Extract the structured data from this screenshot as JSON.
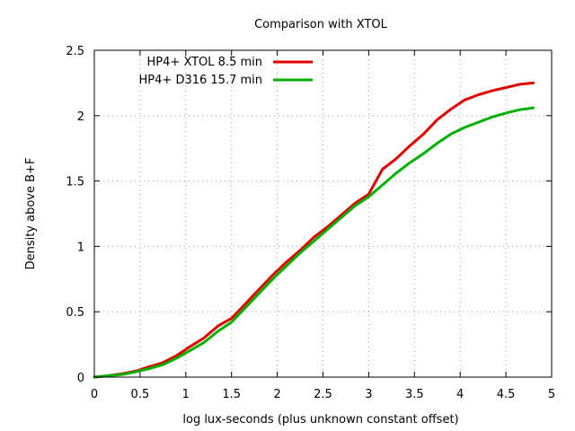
{
  "chart_data": {
    "type": "line",
    "title": "Comparison with XTOL",
    "xlabel": "log lux-seconds (plus unknown constant offset)",
    "ylabel": "Density above B+F",
    "xlim": [
      0,
      5
    ],
    "ylim": [
      0,
      2.5
    ],
    "x_ticks": [
      0,
      0.5,
      1,
      1.5,
      2,
      2.5,
      3,
      3.5,
      4,
      4.5,
      5
    ],
    "x_tick_labels": [
      "0",
      "0.5",
      "1",
      "1.5",
      "2",
      "2.5",
      "3",
      "3.5",
      "4",
      "4.5",
      "5"
    ],
    "y_ticks": [
      0,
      0.5,
      1,
      1.5,
      2,
      2.5
    ],
    "y_tick_labels": [
      "0",
      "0.5",
      "1",
      "1.5",
      "2",
      "2.5"
    ],
    "grid": true,
    "legend": "top-left",
    "series": [
      {
        "name": "HP4+ XTOL 8.5 min",
        "color": "#e00000",
        "x": [
          0,
          0.15,
          0.3,
          0.45,
          0.6,
          0.75,
          0.9,
          1.05,
          1.2,
          1.35,
          1.5,
          1.65,
          1.8,
          1.95,
          2.1,
          2.25,
          2.4,
          2.55,
          2.7,
          2.85,
          3.0,
          3.15,
          3.3,
          3.45,
          3.6,
          3.75,
          3.9,
          4.05,
          4.2,
          4.35,
          4.5,
          4.65,
          4.8
        ],
        "y": [
          0,
          0.01,
          0.025,
          0.045,
          0.08,
          0.11,
          0.165,
          0.235,
          0.3,
          0.39,
          0.45,
          0.56,
          0.67,
          0.78,
          0.88,
          0.97,
          1.07,
          1.15,
          1.24,
          1.33,
          1.4,
          1.59,
          1.67,
          1.77,
          1.86,
          1.97,
          2.05,
          2.12,
          2.16,
          2.19,
          2.215,
          2.24,
          2.25
        ]
      },
      {
        "name": "HP4+ D316 15.7 min",
        "color": "#00b000",
        "x": [
          0,
          0.15,
          0.3,
          0.45,
          0.6,
          0.75,
          0.9,
          1.05,
          1.2,
          1.35,
          1.5,
          1.65,
          1.8,
          1.95,
          2.1,
          2.25,
          2.4,
          2.55,
          2.7,
          2.85,
          3.0,
          3.15,
          3.3,
          3.45,
          3.6,
          3.75,
          3.9,
          4.05,
          4.2,
          4.35,
          4.5,
          4.65,
          4.8
        ],
        "y": [
          0,
          0.01,
          0.02,
          0.04,
          0.065,
          0.095,
          0.145,
          0.205,
          0.265,
          0.35,
          0.42,
          0.53,
          0.64,
          0.75,
          0.85,
          0.95,
          1.04,
          1.13,
          1.22,
          1.31,
          1.38,
          1.47,
          1.56,
          1.64,
          1.71,
          1.79,
          1.86,
          1.91,
          1.95,
          1.99,
          2.02,
          2.045,
          2.06
        ]
      }
    ]
  }
}
